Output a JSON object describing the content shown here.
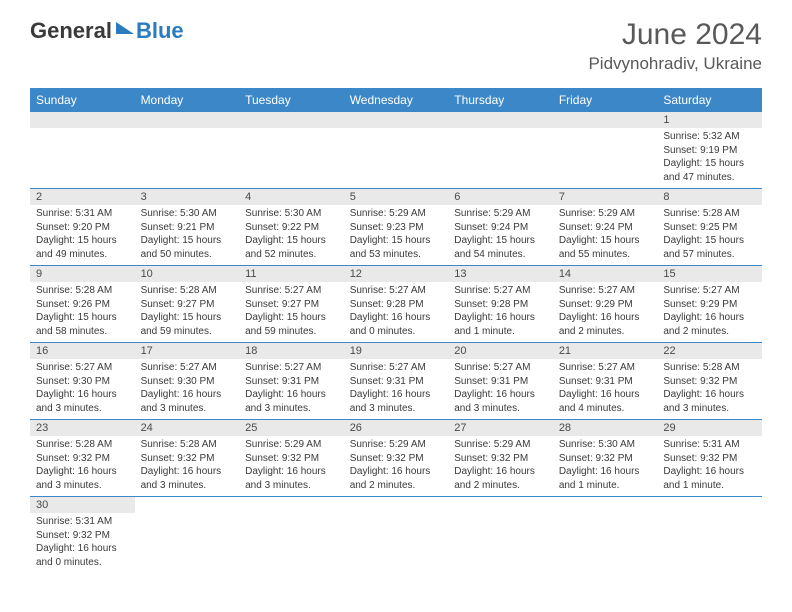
{
  "logo": {
    "general": "General",
    "blue": "Blue"
  },
  "header": {
    "title": "June 2024",
    "location": "Pidvynohradiv, Ukraine"
  },
  "colors": {
    "header_bg": "#3c87c7",
    "header_fg": "#ffffff",
    "daynum_bg": "#e9e9e9",
    "border": "#3c87c7",
    "text": "#3a3a3a",
    "title": "#595959"
  },
  "days": [
    "Sunday",
    "Monday",
    "Tuesday",
    "Wednesday",
    "Thursday",
    "Friday",
    "Saturday"
  ],
  "weeks": [
    [
      null,
      null,
      null,
      null,
      null,
      null,
      {
        "n": "1",
        "sr": "Sunrise: 5:32 AM",
        "ss": "Sunset: 9:19 PM",
        "dl": "Daylight: 15 hours and 47 minutes."
      }
    ],
    [
      {
        "n": "2",
        "sr": "Sunrise: 5:31 AM",
        "ss": "Sunset: 9:20 PM",
        "dl": "Daylight: 15 hours and 49 minutes."
      },
      {
        "n": "3",
        "sr": "Sunrise: 5:30 AM",
        "ss": "Sunset: 9:21 PM",
        "dl": "Daylight: 15 hours and 50 minutes."
      },
      {
        "n": "4",
        "sr": "Sunrise: 5:30 AM",
        "ss": "Sunset: 9:22 PM",
        "dl": "Daylight: 15 hours and 52 minutes."
      },
      {
        "n": "5",
        "sr": "Sunrise: 5:29 AM",
        "ss": "Sunset: 9:23 PM",
        "dl": "Daylight: 15 hours and 53 minutes."
      },
      {
        "n": "6",
        "sr": "Sunrise: 5:29 AM",
        "ss": "Sunset: 9:24 PM",
        "dl": "Daylight: 15 hours and 54 minutes."
      },
      {
        "n": "7",
        "sr": "Sunrise: 5:29 AM",
        "ss": "Sunset: 9:24 PM",
        "dl": "Daylight: 15 hours and 55 minutes."
      },
      {
        "n": "8",
        "sr": "Sunrise: 5:28 AM",
        "ss": "Sunset: 9:25 PM",
        "dl": "Daylight: 15 hours and 57 minutes."
      }
    ],
    [
      {
        "n": "9",
        "sr": "Sunrise: 5:28 AM",
        "ss": "Sunset: 9:26 PM",
        "dl": "Daylight: 15 hours and 58 minutes."
      },
      {
        "n": "10",
        "sr": "Sunrise: 5:28 AM",
        "ss": "Sunset: 9:27 PM",
        "dl": "Daylight: 15 hours and 59 minutes."
      },
      {
        "n": "11",
        "sr": "Sunrise: 5:27 AM",
        "ss": "Sunset: 9:27 PM",
        "dl": "Daylight: 15 hours and 59 minutes."
      },
      {
        "n": "12",
        "sr": "Sunrise: 5:27 AM",
        "ss": "Sunset: 9:28 PM",
        "dl": "Daylight: 16 hours and 0 minutes."
      },
      {
        "n": "13",
        "sr": "Sunrise: 5:27 AM",
        "ss": "Sunset: 9:28 PM",
        "dl": "Daylight: 16 hours and 1 minute."
      },
      {
        "n": "14",
        "sr": "Sunrise: 5:27 AM",
        "ss": "Sunset: 9:29 PM",
        "dl": "Daylight: 16 hours and 2 minutes."
      },
      {
        "n": "15",
        "sr": "Sunrise: 5:27 AM",
        "ss": "Sunset: 9:29 PM",
        "dl": "Daylight: 16 hours and 2 minutes."
      }
    ],
    [
      {
        "n": "16",
        "sr": "Sunrise: 5:27 AM",
        "ss": "Sunset: 9:30 PM",
        "dl": "Daylight: 16 hours and 3 minutes."
      },
      {
        "n": "17",
        "sr": "Sunrise: 5:27 AM",
        "ss": "Sunset: 9:30 PM",
        "dl": "Daylight: 16 hours and 3 minutes."
      },
      {
        "n": "18",
        "sr": "Sunrise: 5:27 AM",
        "ss": "Sunset: 9:31 PM",
        "dl": "Daylight: 16 hours and 3 minutes."
      },
      {
        "n": "19",
        "sr": "Sunrise: 5:27 AM",
        "ss": "Sunset: 9:31 PM",
        "dl": "Daylight: 16 hours and 3 minutes."
      },
      {
        "n": "20",
        "sr": "Sunrise: 5:27 AM",
        "ss": "Sunset: 9:31 PM",
        "dl": "Daylight: 16 hours and 3 minutes."
      },
      {
        "n": "21",
        "sr": "Sunrise: 5:27 AM",
        "ss": "Sunset: 9:31 PM",
        "dl": "Daylight: 16 hours and 4 minutes."
      },
      {
        "n": "22",
        "sr": "Sunrise: 5:28 AM",
        "ss": "Sunset: 9:32 PM",
        "dl": "Daylight: 16 hours and 3 minutes."
      }
    ],
    [
      {
        "n": "23",
        "sr": "Sunrise: 5:28 AM",
        "ss": "Sunset: 9:32 PM",
        "dl": "Daylight: 16 hours and 3 minutes."
      },
      {
        "n": "24",
        "sr": "Sunrise: 5:28 AM",
        "ss": "Sunset: 9:32 PM",
        "dl": "Daylight: 16 hours and 3 minutes."
      },
      {
        "n": "25",
        "sr": "Sunrise: 5:29 AM",
        "ss": "Sunset: 9:32 PM",
        "dl": "Daylight: 16 hours and 3 minutes."
      },
      {
        "n": "26",
        "sr": "Sunrise: 5:29 AM",
        "ss": "Sunset: 9:32 PM",
        "dl": "Daylight: 16 hours and 2 minutes."
      },
      {
        "n": "27",
        "sr": "Sunrise: 5:29 AM",
        "ss": "Sunset: 9:32 PM",
        "dl": "Daylight: 16 hours and 2 minutes."
      },
      {
        "n": "28",
        "sr": "Sunrise: 5:30 AM",
        "ss": "Sunset: 9:32 PM",
        "dl": "Daylight: 16 hours and 1 minute."
      },
      {
        "n": "29",
        "sr": "Sunrise: 5:31 AM",
        "ss": "Sunset: 9:32 PM",
        "dl": "Daylight: 16 hours and 1 minute."
      }
    ],
    [
      {
        "n": "30",
        "sr": "Sunrise: 5:31 AM",
        "ss": "Sunset: 9:32 PM",
        "dl": "Daylight: 16 hours and 0 minutes."
      },
      null,
      null,
      null,
      null,
      null,
      null
    ]
  ]
}
